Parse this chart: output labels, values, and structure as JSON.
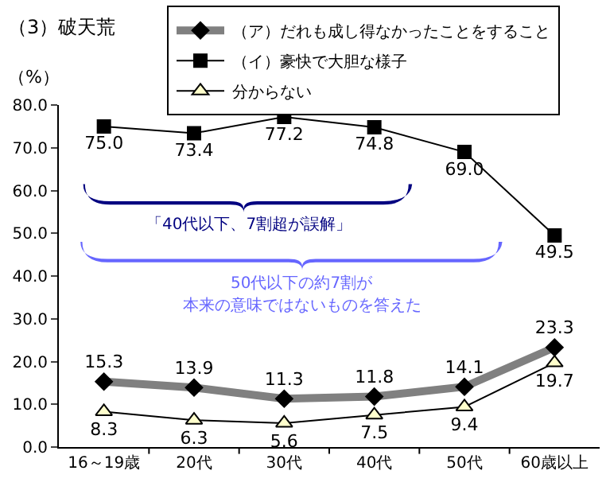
{
  "chart_data": {
    "type": "line",
    "title": "（3）破天荒",
    "ylabel": "（%）",
    "categories": [
      "16～19歳",
      "20代",
      "30代",
      "40代",
      "50代",
      "60歳以上"
    ],
    "series": [
      {
        "name": "（ア）だれも成し得なかったことをすること",
        "color": "#808080",
        "marker": "diamond",
        "values": [
          15.3,
          13.9,
          11.3,
          11.8,
          14.1,
          23.3
        ],
        "value_labels": [
          "15.3",
          "13.9",
          "11.3",
          "11.8",
          "14.1",
          "23.3"
        ]
      },
      {
        "name": "（イ）豪快で大胆な様子",
        "color": "#000000",
        "marker": "square",
        "values": [
          75.0,
          73.4,
          77.2,
          74.8,
          69.0,
          49.5
        ],
        "value_labels": [
          "75.0",
          "73.4",
          "77.2",
          "74.8",
          "69.0",
          "49.5"
        ]
      },
      {
        "name": "分からない",
        "color": "#000000",
        "marker": "triangle",
        "values": [
          8.3,
          6.3,
          5.6,
          7.5,
          9.4,
          19.7
        ],
        "value_labels": [
          "8.3",
          "6.3",
          "5.6",
          "7.5",
          "9.4",
          "19.7"
        ]
      }
    ],
    "ylim": [
      0,
      80
    ],
    "yticks": [
      {
        "value": 0,
        "label": "0.0"
      },
      {
        "value": 10,
        "label": "10.0"
      },
      {
        "value": 20,
        "label": "20.0"
      },
      {
        "value": 30,
        "label": "30.0"
      },
      {
        "value": 40,
        "label": "40.0"
      },
      {
        "value": 50,
        "label": "50.0"
      },
      {
        "value": 60,
        "label": "60.0"
      },
      {
        "value": 70,
        "label": "70.0"
      },
      {
        "value": 80,
        "label": "80.0"
      }
    ],
    "legend": "top right",
    "annotations": [
      "「40代以下、7割超が誤解」",
      "50代以下の約7割が",
      "本来の意味ではないものを答えた"
    ]
  }
}
